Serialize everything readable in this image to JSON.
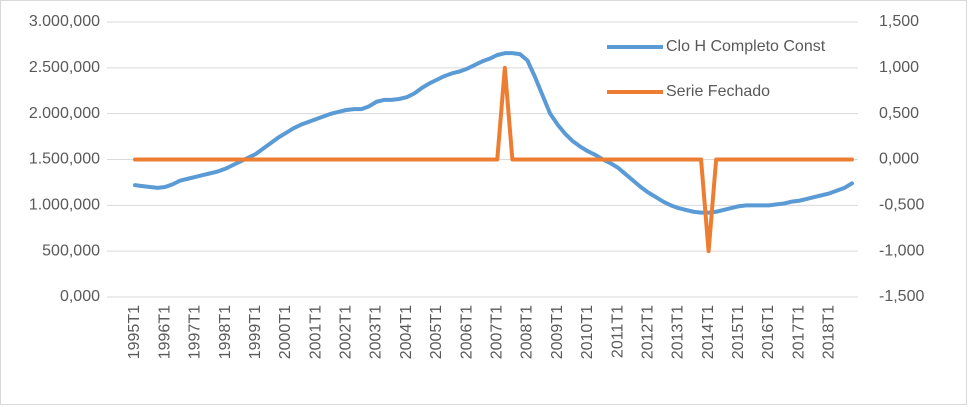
{
  "chart_data": {
    "type": "line",
    "categories": [
      "1995T1",
      null,
      null,
      null,
      "1996T1",
      null,
      null,
      null,
      "1997T1",
      null,
      null,
      null,
      "1998T1",
      null,
      null,
      null,
      "1999T1",
      null,
      null,
      null,
      "2000T1",
      null,
      null,
      null,
      "2001T1",
      null,
      null,
      null,
      "2002T1",
      null,
      null,
      null,
      "2003T1",
      null,
      null,
      null,
      "2004T1",
      null,
      null,
      null,
      "2005T1",
      null,
      null,
      null,
      "2006T1",
      null,
      null,
      null,
      "2007T1",
      null,
      null,
      null,
      "2008T1",
      null,
      null,
      null,
      "2009T1",
      null,
      null,
      null,
      "2010T1",
      null,
      null,
      null,
      "2011T1",
      null,
      null,
      null,
      "2012T1",
      null,
      null,
      null,
      "2013T1",
      null,
      null,
      null,
      "2014T1",
      null,
      null,
      null,
      "2015T1",
      null,
      null,
      null,
      "2016T1",
      null,
      null,
      null,
      "2017T1",
      null,
      null,
      null,
      "2018T1",
      null,
      null,
      null
    ],
    "series": [
      {
        "name": "Clo H Completo Const",
        "color": "#5b9bd5",
        "values": [
          1220000,
          1210000,
          1200000,
          1190000,
          1200000,
          1230000,
          1270000,
          1290000,
          1310000,
          1330000,
          1350000,
          1370000,
          1400000,
          1440000,
          1480000,
          1520000,
          1560000,
          1620000,
          1680000,
          1740000,
          1790000,
          1840000,
          1880000,
          1910000,
          1940000,
          1970000,
          2000000,
          2020000,
          2040000,
          2050000,
          2050000,
          2080000,
          2130000,
          2150000,
          2150000,
          2160000,
          2180000,
          2220000,
          2280000,
          2330000,
          2370000,
          2410000,
          2440000,
          2460000,
          2490000,
          2530000,
          2570000,
          2600000,
          2640000,
          2660000,
          2660000,
          2650000,
          2580000,
          2400000,
          2200000,
          2000000,
          1880000,
          1780000,
          1700000,
          1640000,
          1590000,
          1550000,
          1500000,
          1460000,
          1410000,
          1340000,
          1270000,
          1200000,
          1140000,
          1090000,
          1040000,
          1000000,
          970000,
          950000,
          930000,
          920000,
          920000,
          930000,
          950000,
          970000,
          990000,
          1000000,
          1000000,
          1000000,
          1000000,
          1010000,
          1020000,
          1040000,
          1050000,
          1070000,
          1090000,
          1110000,
          1130000,
          1160000,
          1190000,
          1240000
        ]
      },
      {
        "name": "Serie Fechado",
        "color": "#ed7d31",
        "axis": "y2",
        "values": [
          0,
          0,
          0,
          0,
          0,
          0,
          0,
          0,
          0,
          0,
          0,
          0,
          0,
          0,
          0,
          0,
          0,
          0,
          0,
          0,
          0,
          0,
          0,
          0,
          0,
          0,
          0,
          0,
          0,
          0,
          0,
          0,
          0,
          0,
          0,
          0,
          0,
          0,
          0,
          0,
          0,
          0,
          0,
          0,
          0,
          0,
          0,
          0,
          0,
          1,
          0,
          0,
          0,
          0,
          0,
          0,
          0,
          0,
          0,
          0,
          0,
          0,
          0,
          0,
          0,
          0,
          0,
          0,
          0,
          0,
          0,
          0,
          0,
          0,
          0,
          0,
          -1,
          0,
          0,
          0,
          0,
          0,
          0,
          0,
          0,
          0,
          0,
          0,
          0,
          0,
          0,
          0,
          0,
          0,
          0,
          0
        ]
      }
    ],
    "ylim": [
      0,
      3000000
    ],
    "yticks": [
      {
        "value": 0,
        "label": "0,000"
      },
      {
        "value": 500000,
        "label": "500,000"
      },
      {
        "value": 1000000,
        "label": "1.000,000"
      },
      {
        "value": 1500000,
        "label": "1.500,000"
      },
      {
        "value": 2000000,
        "label": "2.000,000"
      },
      {
        "value": 2500000,
        "label": "2.500,000"
      },
      {
        "value": 3000000,
        "label": "3.000,000"
      }
    ],
    "y2lim": [
      -1.5,
      1.5
    ],
    "y2ticks": [
      {
        "value": -1.5,
        "label": "-1,500"
      },
      {
        "value": -1,
        "label": "-1,000"
      },
      {
        "value": -0.5,
        "label": "-0,500"
      },
      {
        "value": 0,
        "label": "0,000"
      },
      {
        "value": 0.5,
        "label": "0,500"
      },
      {
        "value": 1,
        "label": "1,000"
      },
      {
        "value": 1.5,
        "label": "1,500"
      }
    ],
    "grid": true,
    "legend": "top-right"
  }
}
